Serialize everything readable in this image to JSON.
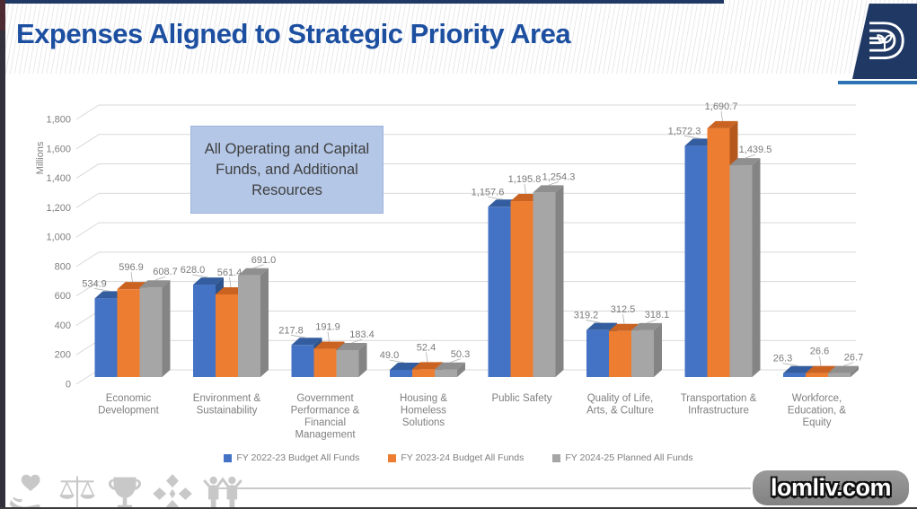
{
  "header": {
    "title": "Expenses Aligned to Strategic Priority Area",
    "logo": "city-of-dallas-d-logo"
  },
  "annotation_box": {
    "text": "All Operating and Capital Funds, and Additional Resources",
    "bg_color": "#b4c7e7"
  },
  "chart_data": {
    "type": "bar",
    "style": "3d-column",
    "ylabel": "Millions",
    "ylim": [
      0,
      1800
    ],
    "ytick_step": 200,
    "grid": true,
    "data_labels": true,
    "legend_position": "bottom",
    "categories": [
      "Economic\nDevelopment",
      "Environment &\nSustainability",
      "Government\nPerformance &\nFinancial\nManagement",
      "Housing &\nHomeless\nSolutions",
      "Public Safety",
      "Quality of Life,\nArts, & Culture",
      "Transportation &\nInfrastructure",
      "Workforce,\nEducation, &\nEquity"
    ],
    "series": [
      {
        "name": "FY 2022-23 Budget All Funds",
        "color": "#4472C4",
        "top_color": "#335d9e",
        "side_color": "#2d528c",
        "values": [
          534.9,
          628.0,
          217.8,
          49.0,
          1157.6,
          319.2,
          1572.3,
          26.3
        ]
      },
      {
        "name": "FY 2023-24 Budget All Funds",
        "color": "#ED7D31",
        "top_color": "#ca6322",
        "side_color": "#b5581e",
        "values": [
          596.9,
          561.4,
          191.9,
          52.4,
          1195.8,
          312.5,
          1690.7,
          26.6
        ]
      },
      {
        "name": "FY 2024-25 Planned All Funds",
        "color": "#A6A6A6",
        "top_color": "#8f8f8f",
        "side_color": "#848484",
        "values": [
          608.7,
          691.0,
          183.4,
          50.3,
          1254.3,
          318.1,
          1439.5,
          26.7
        ]
      }
    ]
  },
  "watermark": {
    "text": "lomliv.com"
  },
  "footer_icons": [
    "hand-heart-icon",
    "scales-icon",
    "trophy-icon",
    "pinwheel-icon",
    "people-icon"
  ],
  "colors": {
    "title_blue": "#1d4fa1",
    "navy": "#1f3864",
    "accent_blue": "#2e74b5",
    "gridline": "#d9d9d9",
    "axis_text": "#7f7f7f",
    "footer_icon_gray": "#c8c8c8"
  }
}
